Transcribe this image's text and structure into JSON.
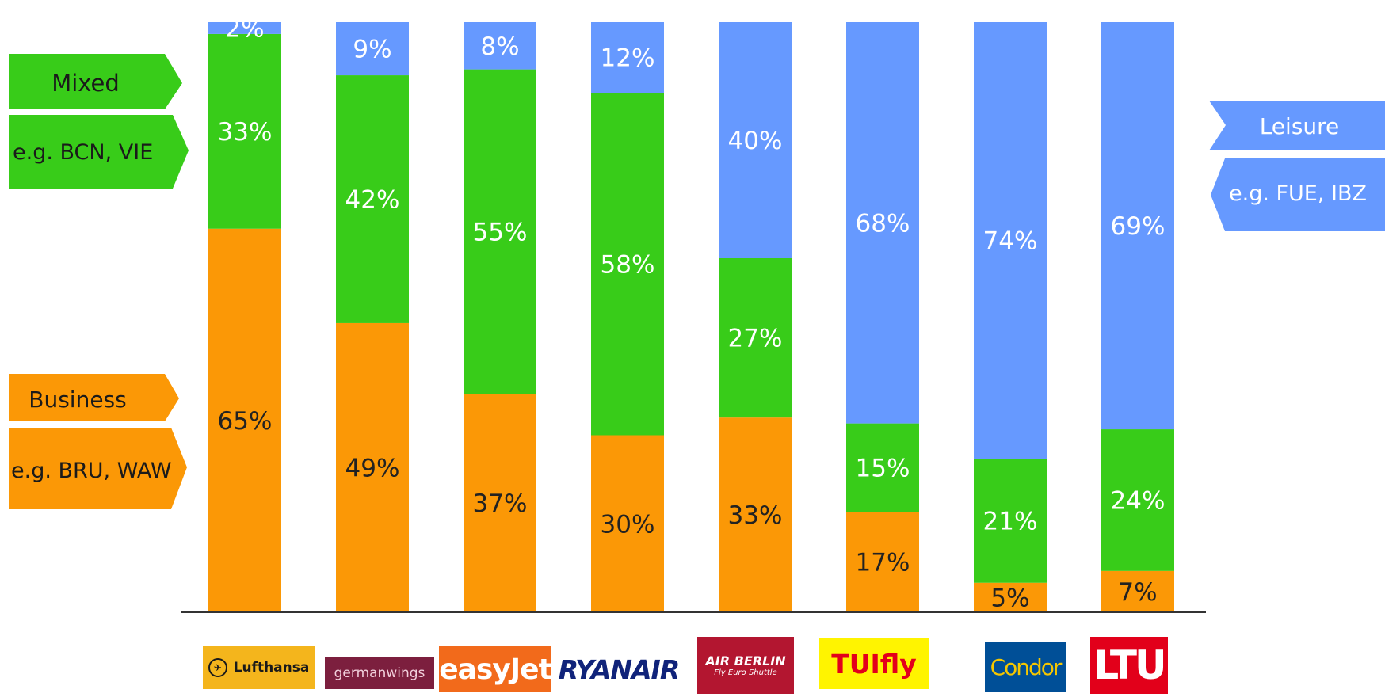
{
  "chart_data": {
    "type": "bar",
    "stacked": true,
    "categories": [
      "Lufthansa",
      "germanwings",
      "easyJet",
      "RYANAIR",
      "AIR BERLIN",
      "TUIfly",
      "Condor",
      "LTU"
    ],
    "series": [
      {
        "key": "business",
        "values": [
          65,
          49,
          37,
          30,
          33,
          17,
          5,
          7
        ],
        "labels": [
          "65%",
          "49%",
          "37%",
          "30%",
          "33%",
          "17%",
          "5%",
          "7%"
        ]
      },
      {
        "key": "mixed",
        "values": [
          33,
          42,
          55,
          58,
          27,
          15,
          21,
          24
        ],
        "labels": [
          "33%",
          "42%",
          "55%",
          "58%",
          "27%",
          "15%",
          "21%",
          "24%"
        ]
      },
      {
        "key": "leisure",
        "values": [
          2,
          9,
          8,
          12,
          40,
          68,
          74,
          69
        ],
        "labels": [
          "2%",
          "9%",
          "8%",
          "12%",
          "40%",
          "68%",
          "74%",
          "69%"
        ]
      }
    ],
    "ylim": [
      0,
      100
    ],
    "grid": false
  },
  "colors": {
    "business": "#fb9806",
    "mixed": "#38cc19",
    "leisure": "#6699ff",
    "baseline": "#333333"
  },
  "side_labels": {
    "mixed": {
      "title": "Mixed",
      "example": "e.g. BCN, VIE"
    },
    "business": {
      "title": "Business",
      "example": "e.g. BRU, WAW"
    },
    "leisure": {
      "title": "Leisure",
      "example": "e.g. FUE, IBZ"
    }
  },
  "logos": {
    "lufthansa": "Lufthansa",
    "germanwings": "germanwings",
    "easyjet": "easyJet",
    "ryanair": "RYANAIR",
    "airberlin_main": "AIR BERLIN",
    "airberlin_sub": "Fly Euro Shuttle",
    "tuifly": "TUIfly",
    "condor": "Condor",
    "ltu": "LTU"
  }
}
